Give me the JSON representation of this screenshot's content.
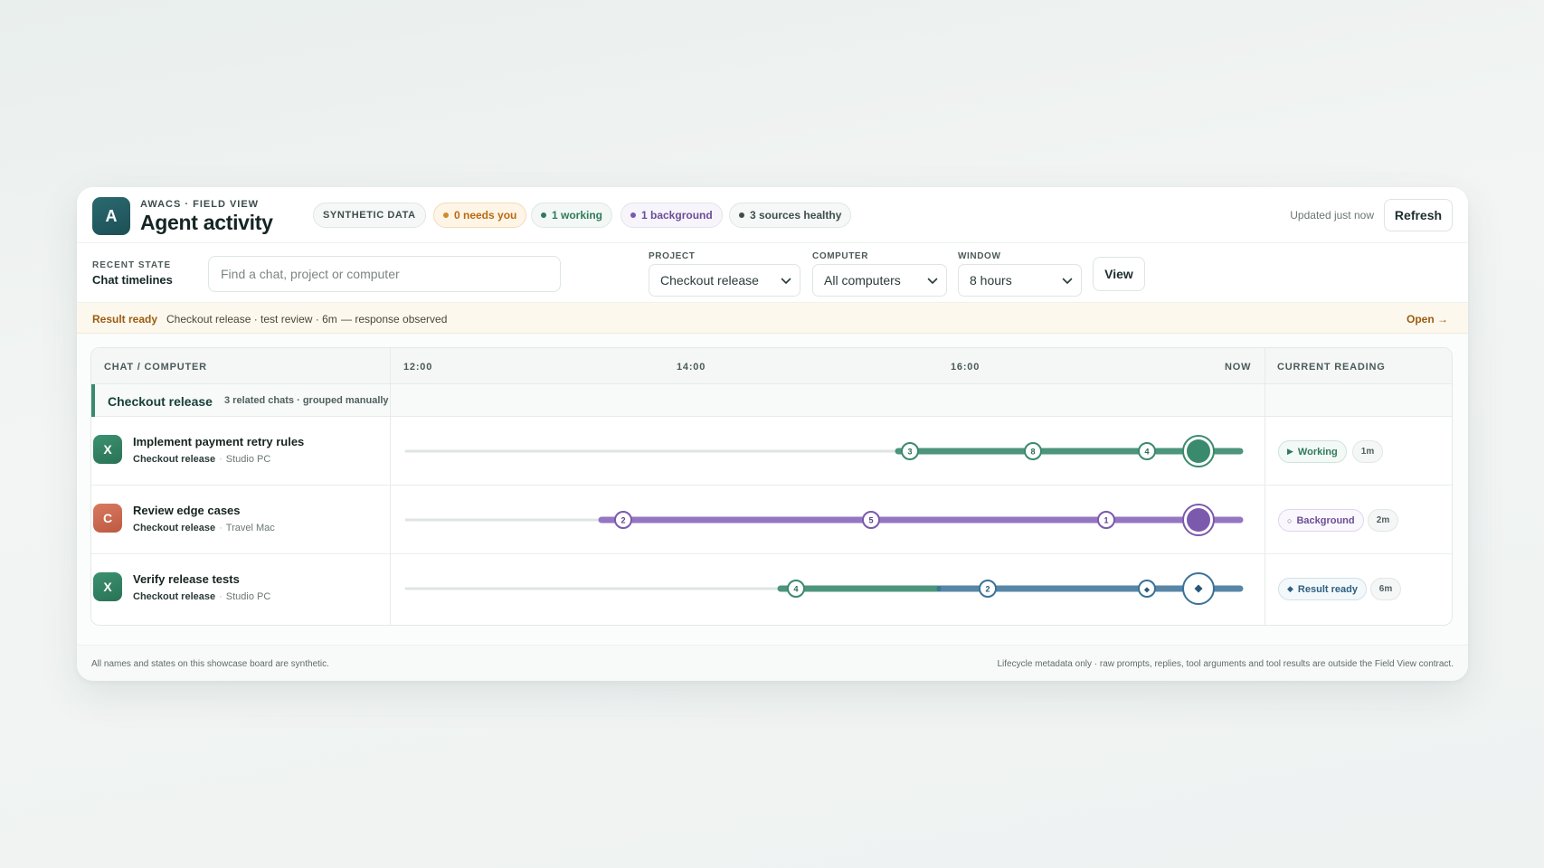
{
  "header": {
    "logo_letter": "A",
    "eyebrow": "AWACS · FIELD VIEW",
    "title": "Agent activity",
    "pills": {
      "synthetic": "SYNTHETIC DATA",
      "needs_you": "0 needs you",
      "working": "1 working",
      "background": "1 background",
      "sources": "3 sources healthy"
    },
    "updated": "Updated just now",
    "refresh_label": "Refresh"
  },
  "filters": {
    "recent_label": "RECENT STATE",
    "recent_value": "Chat timelines",
    "search_placeholder": "Find a chat, project or computer",
    "project_label": "PROJECT",
    "project_value": "Checkout release",
    "computer_label": "COMPUTER",
    "computer_value": "All computers",
    "window_label": "WINDOW",
    "window_value": "8 hours",
    "view_label": "View"
  },
  "banner": {
    "status": "Result ready",
    "detail": "Checkout release · test review · 6m",
    "note": "— response observed",
    "open_label": "Open →"
  },
  "table": {
    "col_chat": "CHAT / COMPUTER",
    "ticks": [
      "12:00",
      "14:00",
      "16:00",
      "NOW"
    ],
    "col_reading": "CURRENT READING",
    "group": {
      "name": "Checkout release",
      "meta": "3 related chats · grouped manually"
    },
    "rows": [
      {
        "badge": "X",
        "name": "Implement payment retry rules",
        "project": "Checkout release",
        "computer": "Studio PC",
        "state": "Working",
        "age": "1m",
        "color": "#3a8a6e",
        "markers": [
          "3",
          "8",
          "4"
        ]
      },
      {
        "badge": "C",
        "name": "Review edge cases",
        "project": "Checkout release",
        "computer": "Travel Mac",
        "state": "Background",
        "age": "2m",
        "color": "#7b59ad",
        "markers": [
          "2",
          "5",
          "1"
        ]
      },
      {
        "badge": "X",
        "name": "Verify release tests",
        "project": "Checkout release",
        "computer": "Studio PC",
        "state": "Result ready",
        "age": "6m",
        "color": "#3a7298",
        "markers": [
          "4",
          "2",
          "◆"
        ]
      }
    ]
  },
  "footer": {
    "left": "All names and states on this showcase board are synthetic.",
    "right": "Lifecycle metadata only · raw prompts, replies, tool arguments and tool results are outside the Field View contract."
  }
}
